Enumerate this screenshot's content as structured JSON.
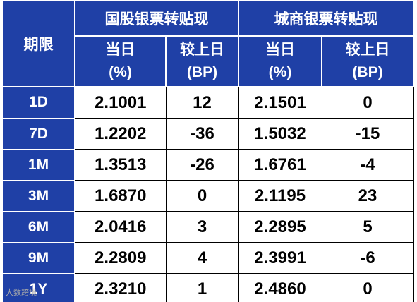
{
  "table": {
    "header": {
      "term": "期限",
      "groups": [
        "国股银票转贴现",
        "城商银票转贴现"
      ]
    },
    "subheader": [
      [
        "当日",
        "(%)"
      ],
      [
        "较上日",
        "(BP)"
      ],
      [
        "当日",
        "(%)"
      ],
      [
        "较上日",
        "(BP)"
      ]
    ],
    "rows": [
      [
        "1D",
        "2.1001",
        "12",
        "2.1501",
        "0"
      ],
      [
        "7D",
        "1.2202",
        "-36",
        "1.5032",
        "-15"
      ],
      [
        "1M",
        "1.3513",
        "-26",
        "1.6761",
        "-4"
      ],
      [
        "3M",
        "1.6870",
        "0",
        "2.1195",
        "23"
      ],
      [
        "6M",
        "2.0416",
        "3",
        "2.2895",
        "5"
      ],
      [
        "9M",
        "2.2809",
        "4",
        "2.3991",
        "-6"
      ],
      [
        "1Y",
        "2.3210",
        "1",
        "2.4860",
        "0"
      ]
    ]
  },
  "watermark": "大数跨境"
}
